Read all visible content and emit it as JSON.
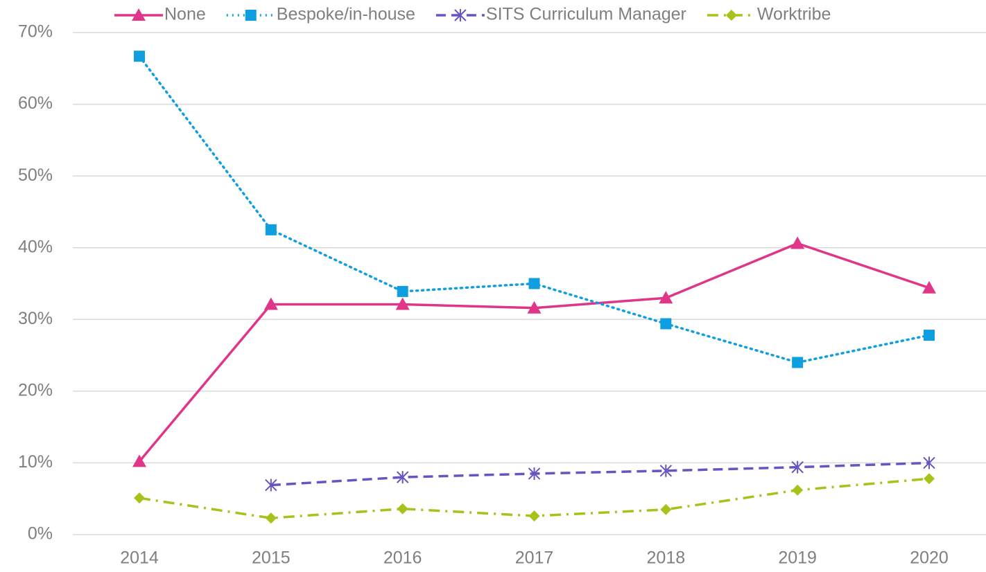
{
  "chart_data": {
    "type": "line",
    "categories": [
      "2014",
      "2015",
      "2016",
      "2017",
      "2018",
      "2019",
      "2020"
    ],
    "series": [
      {
        "name": "None",
        "color": "#e0368a",
        "dash": "solid",
        "marker": "triangle",
        "values": [
          10.2,
          32.1,
          32.1,
          31.6,
          33.0,
          40.6,
          34.4
        ]
      },
      {
        "name": "Bespoke/in-house",
        "color": "#0f9ee0",
        "dash": "dotted",
        "marker": "square",
        "values": [
          66.7,
          42.5,
          33.9,
          35.0,
          29.4,
          24.0,
          27.8
        ]
      },
      {
        "name": "SITS Curriculum Manager",
        "color": "#6655c0",
        "dash": "dashed",
        "marker": "asterisk",
        "values": [
          null,
          6.9,
          8.0,
          8.5,
          8.9,
          9.4,
          10.0
        ]
      },
      {
        "name": "Worktribe",
        "color": "#a8c21a",
        "dash": "dashdot",
        "marker": "diamond",
        "values": [
          5.1,
          2.3,
          3.6,
          2.6,
          3.5,
          6.2,
          7.8
        ]
      }
    ],
    "ylim": [
      0,
      70
    ],
    "yticks": [
      {
        "value": 0,
        "label": "0%"
      },
      {
        "value": 10,
        "label": "10%"
      },
      {
        "value": 20,
        "label": "20%"
      },
      {
        "value": 30,
        "label": "30%"
      },
      {
        "value": 40,
        "label": "40%"
      },
      {
        "value": 50,
        "label": "50%"
      },
      {
        "value": 60,
        "label": "60%"
      },
      {
        "value": 70,
        "label": "70%"
      }
    ],
    "grid": true,
    "legend": "top"
  }
}
